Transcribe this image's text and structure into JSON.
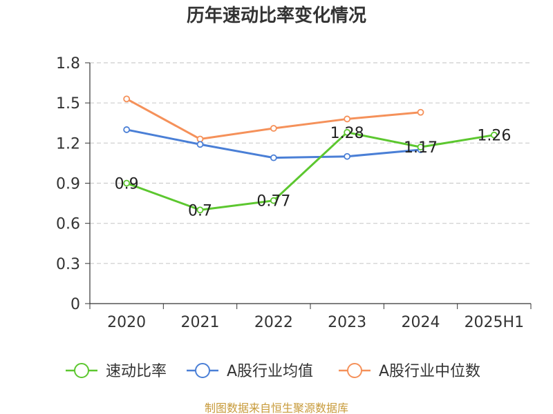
{
  "chart_data": {
    "type": "line",
    "title": "历年速动比率变化情况",
    "categories": [
      "2020",
      "2021",
      "2022",
      "2023",
      "2024",
      "2025H1"
    ],
    "y_ticks": [
      "0",
      "0.3",
      "0.6",
      "0.9",
      "1.2",
      "1.5",
      "1.8"
    ],
    "ylim": [
      0,
      1.8
    ],
    "grid": "horizontal dashed",
    "legend_position": "bottom",
    "series": [
      {
        "name": "速动比率",
        "color": "#5cc72f",
        "values": [
          0.9,
          0.7,
          0.77,
          1.28,
          1.17,
          1.26
        ],
        "labels": [
          "0.9",
          "0.7",
          "0.77",
          "1.28",
          "1.17",
          "1.26"
        ]
      },
      {
        "name": "A股行业均值",
        "color": "#4a7fd6",
        "values": [
          1.3,
          1.19,
          1.09,
          1.1,
          1.15,
          null
        ]
      },
      {
        "name": "A股行业中位数",
        "color": "#f5915a",
        "values": [
          1.53,
          1.23,
          1.31,
          1.38,
          1.43,
          null
        ]
      }
    ]
  },
  "footer": {
    "source": "制图数据来自恒生聚源数据库"
  }
}
